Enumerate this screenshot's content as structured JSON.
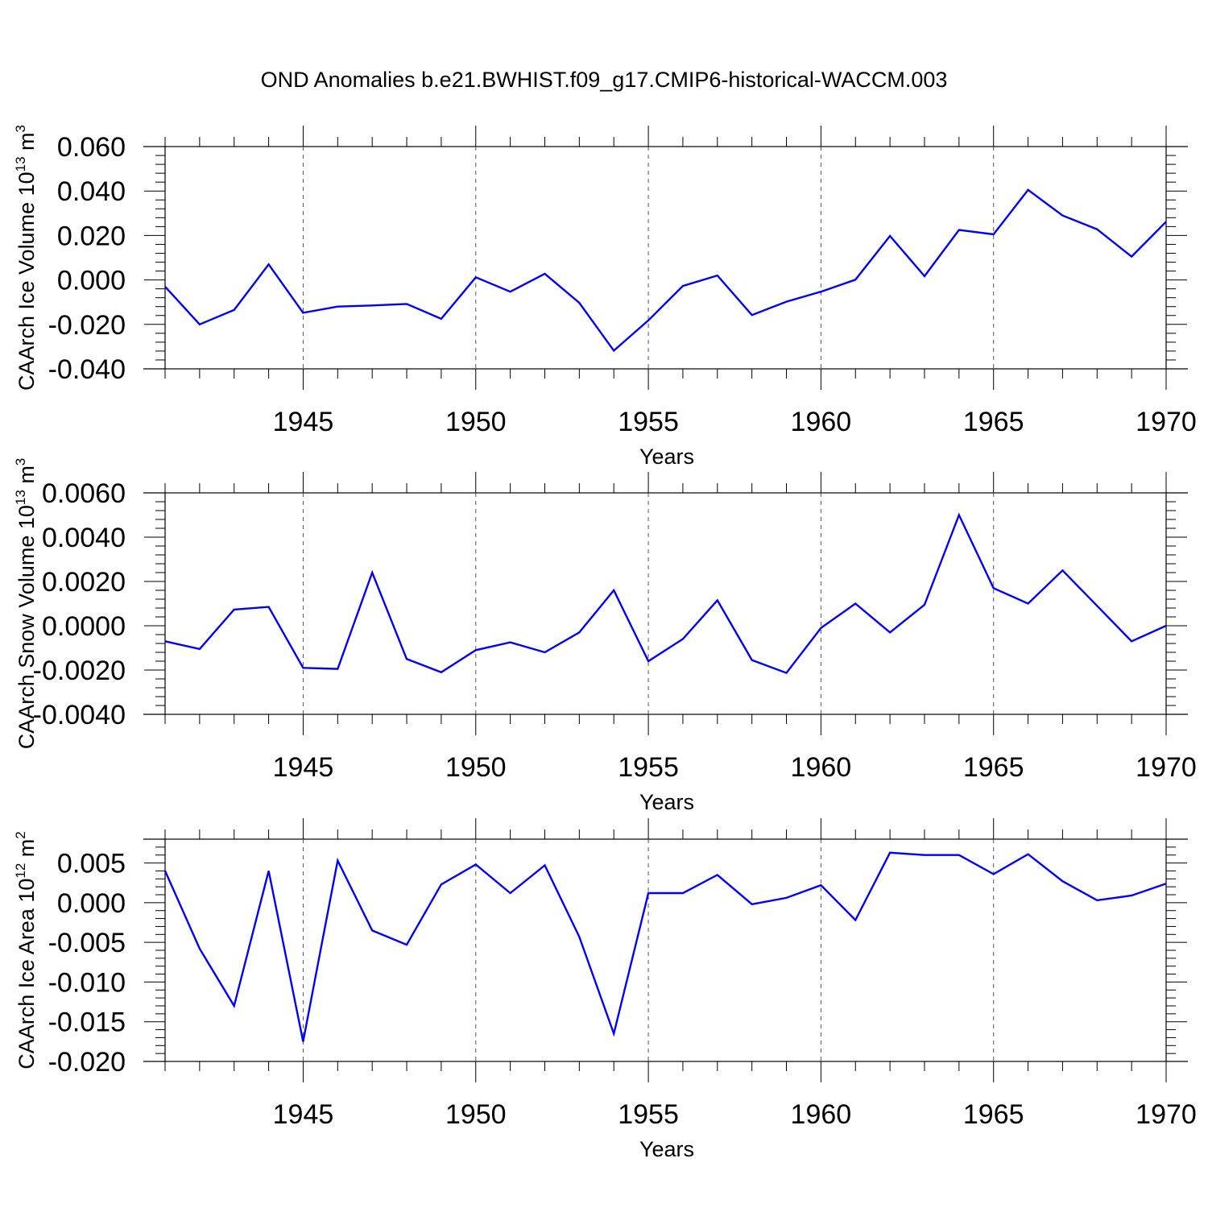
{
  "title": "OND Anomalies b.e21.BWHIST.f09_g17.CMIP6-historical-WACCM.003",
  "colors": {
    "series": "#0000ff",
    "axis": "#000000",
    "grid": "#555555"
  },
  "chart_data": [
    {
      "type": "line",
      "ylabel": "CAArch Ice Volume 10",
      "ylabel_exp": "13",
      "ylabel_unit": " m",
      "ylabel_unit_exp": "3",
      "xlabel": "Years",
      "xlim": [
        1941,
        1970
      ],
      "ylim": [
        -0.04,
        0.06
      ],
      "yticks": [
        -0.04,
        -0.02,
        0.0,
        0.02,
        0.04,
        0.06
      ],
      "ytick_labels": [
        "-0.040",
        "-0.020",
        "0.000",
        "0.020",
        "0.040",
        "0.060"
      ],
      "xticks": [
        1945,
        1950,
        1955,
        1960,
        1965,
        1970
      ],
      "xtick_labels": [
        "1945",
        "1950",
        "1955",
        "1960",
        "1965",
        "1970"
      ],
      "grid": "dashed vertical at major x ticks",
      "x": [
        1941,
        1942,
        1943,
        1944,
        1945,
        1946,
        1947,
        1948,
        1949,
        1950,
        1951,
        1952,
        1953,
        1954,
        1955,
        1956,
        1957,
        1958,
        1959,
        1960,
        1961,
        1962,
        1963,
        1964,
        1965,
        1966,
        1967,
        1968,
        1969,
        1970
      ],
      "y": [
        -0.003,
        -0.02,
        -0.0135,
        0.007,
        -0.0148,
        -0.012,
        -0.0115,
        -0.0108,
        -0.0175,
        0.0012,
        -0.0053,
        0.0028,
        -0.0103,
        -0.0318,
        -0.0182,
        -0.0027,
        0.002,
        -0.0158,
        -0.0098,
        -0.0053,
        0.0001,
        0.0198,
        0.0017,
        0.0225,
        0.0205,
        0.0405,
        0.029,
        0.0228,
        0.0105,
        0.0262
      ]
    },
    {
      "type": "line",
      "ylabel": "CAArch Snow Volume 10",
      "ylabel_exp": "13",
      "ylabel_unit": " m",
      "ylabel_unit_exp": "3",
      "xlabel": "Years",
      "xlim": [
        1941,
        1970
      ],
      "ylim": [
        -0.004,
        0.006
      ],
      "yticks": [
        -0.004,
        -0.002,
        0.0,
        0.002,
        0.004,
        0.006
      ],
      "ytick_labels": [
        "-0.0040",
        "-0.0020",
        "0.0000",
        "0.0020",
        "0.0040",
        "0.0060"
      ],
      "xticks": [
        1945,
        1950,
        1955,
        1960,
        1965,
        1970
      ],
      "xtick_labels": [
        "1945",
        "1950",
        "1955",
        "1960",
        "1965",
        "1970"
      ],
      "grid": "dashed vertical at major x ticks",
      "x": [
        1941,
        1942,
        1943,
        1944,
        1945,
        1946,
        1947,
        1948,
        1949,
        1950,
        1951,
        1952,
        1953,
        1954,
        1955,
        1956,
        1957,
        1958,
        1959,
        1960,
        1961,
        1962,
        1963,
        1964,
        1965,
        1966,
        1967,
        1968,
        1969,
        1970
      ],
      "y": [
        -0.0007,
        -0.00105,
        0.00073,
        0.00085,
        -0.0019,
        -0.00195,
        0.0024,
        -0.0015,
        -0.0021,
        -0.0011,
        -0.00075,
        -0.0012,
        -0.0003,
        0.0016,
        -0.0016,
        -0.0006,
        0.00115,
        -0.00155,
        -0.00213,
        -0.0001,
        0.001,
        -0.0003,
        0.00095,
        0.005,
        0.0017,
        0.001,
        0.0025,
        0.0009,
        -0.0007,
        0.0
      ]
    },
    {
      "type": "line",
      "ylabel": "CAArch Ice Area 10",
      "ylabel_exp": "12",
      "ylabel_unit": " m",
      "ylabel_unit_exp": "2",
      "xlabel": "Years",
      "xlim": [
        1941,
        1970
      ],
      "ylim": [
        -0.02,
        0.008
      ],
      "yticks": [
        -0.02,
        -0.015,
        -0.01,
        -0.005,
        0.0,
        0.005
      ],
      "ytick_labels": [
        "-0.020",
        "-0.015",
        "-0.010",
        "-0.005",
        "0.000",
        "0.005"
      ],
      "xticks": [
        1945,
        1950,
        1955,
        1960,
        1965,
        1970
      ],
      "xtick_labels": [
        "1945",
        "1950",
        "1955",
        "1960",
        "1965",
        "1970"
      ],
      "grid": "dashed vertical at major x ticks",
      "x": [
        1941,
        1942,
        1943,
        1944,
        1945,
        1946,
        1947,
        1948,
        1949,
        1950,
        1951,
        1952,
        1953,
        1954,
        1955,
        1956,
        1957,
        1958,
        1959,
        1960,
        1961,
        1962,
        1963,
        1964,
        1965,
        1966,
        1967,
        1968,
        1969,
        1970
      ],
      "y": [
        0.004,
        -0.0058,
        -0.013,
        0.004,
        -0.0175,
        0.0053,
        -0.0035,
        -0.0053,
        0.0023,
        0.0048,
        0.0012,
        0.0047,
        -0.0043,
        -0.0165,
        0.0012,
        0.0012,
        0.0035,
        -0.0002,
        0.0006,
        0.0022,
        -0.0022,
        0.0063,
        0.006,
        0.006,
        0.0036,
        0.0061,
        0.0027,
        0.0003,
        0.0009,
        0.0024
      ]
    }
  ]
}
